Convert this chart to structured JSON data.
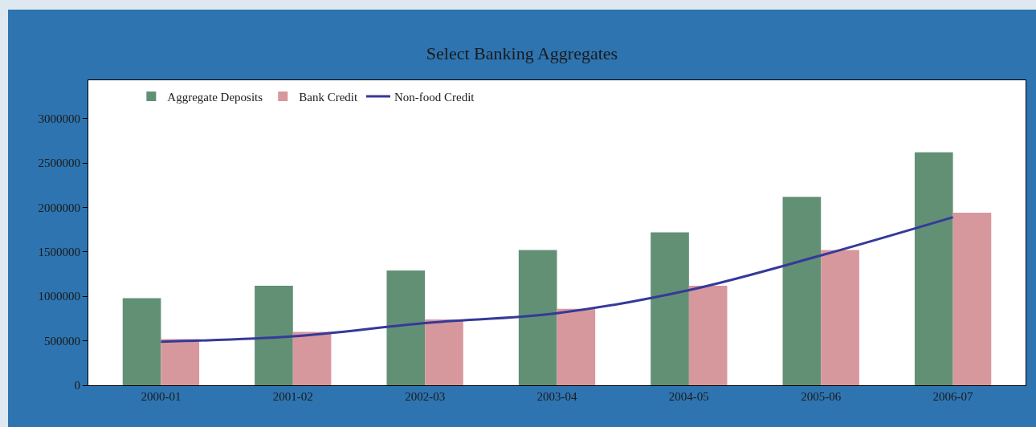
{
  "chart_data": {
    "type": "bar",
    "title": "Select Banking Aggregates",
    "categories": [
      "2000-01",
      "2001-02",
      "2002-03",
      "2003-04",
      "2004-05",
      "2005-06",
      "2006-07"
    ],
    "series": [
      {
        "name": "Aggregate Deposits",
        "color": "#629075",
        "values": [
          980000,
          1120000,
          1290000,
          1520000,
          1720000,
          2120000,
          2620000
        ]
      },
      {
        "name": "Bank Credit",
        "color": "#d6989d",
        "values": [
          520000,
          600000,
          740000,
          860000,
          1120000,
          1520000,
          1940000
        ]
      },
      {
        "name": "Non-food Credit",
        "type": "line",
        "color": "#35399a",
        "values": [
          490000,
          550000,
          700000,
          810000,
          1070000,
          1460000,
          1890000
        ]
      }
    ],
    "ylim": [
      0,
      3430000
    ],
    "yticks": [
      0,
      500000,
      1000000,
      1500000,
      2000000,
      2500000,
      3000000
    ],
    "legend": "top left",
    "marker": "none"
  }
}
